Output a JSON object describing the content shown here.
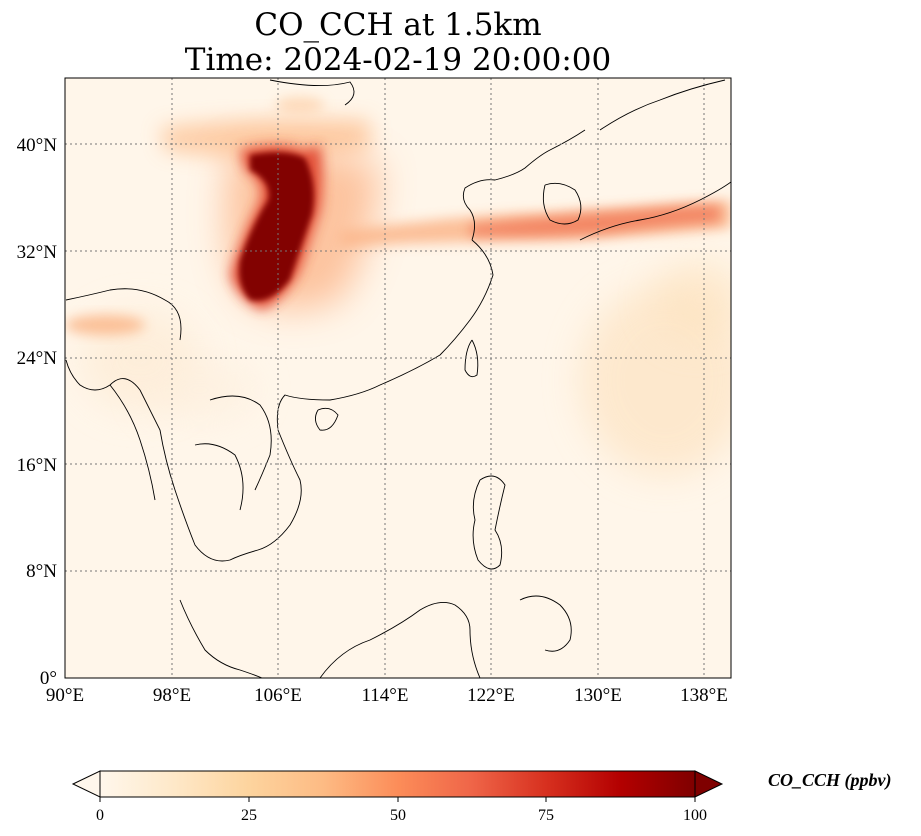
{
  "title_line1": "CO_CCH at 1.5km",
  "title_line2": "Time: 2024-02-19 20:00:00",
  "colorbar": {
    "label": "CO_CCH (ppbv)",
    "ticks": [
      "0",
      "25",
      "50",
      "75",
      "100"
    ],
    "colormap": "OrRd",
    "extend": "both",
    "colors": [
      "#fff7ec",
      "#fee8c8",
      "#fdd49e",
      "#fdbb84",
      "#fc8d59",
      "#ef6548",
      "#d7301f",
      "#b30000",
      "#7f0000"
    ]
  },
  "map": {
    "lon_ticks": [
      "90°E",
      "98°E",
      "106°E",
      "114°E",
      "122°E",
      "130°E",
      "138°E"
    ],
    "lat_ticks": [
      "0°",
      "8°N",
      "16°N",
      "24°N",
      "32°N",
      "40°N"
    ],
    "extent": {
      "lon_min": 90,
      "lon_max": 140,
      "lat_min": 0,
      "lat_max": 45
    },
    "gridlines": "dotted"
  },
  "chart_data": {
    "type": "heatmap",
    "title": "CO_CCH at 1.5km Time: 2024-02-19 20:00:00",
    "colorbar_label": "CO_CCH (ppbv)",
    "value_range": [
      0,
      100
    ],
    "x_range": [
      90,
      140
    ],
    "y_range": [
      0,
      45
    ],
    "plumes": [
      {
        "region": "central China (Sichuan–Shaanxi)",
        "lon": [
          102,
          110
        ],
        "lat": [
          29,
          40
        ],
        "peak_ppbv": 100
      },
      {
        "region": "Hetao / Inner Mongolia band",
        "lon": [
          98,
          112
        ],
        "lat": [
          38,
          42
        ],
        "peak_ppbv": 40
      },
      {
        "region": "Yellow Sea – Korea – Japan band",
        "lon": [
          114,
          140
        ],
        "lat": [
          32,
          35.5
        ],
        "peak_ppbv": 55
      },
      {
        "region": "NE India",
        "lon": [
          90,
          96
        ],
        "lat": [
          26,
          27
        ],
        "peak_ppbv": 25
      },
      {
        "region": "Western Pacific diffuse",
        "lon": [
          129,
          140
        ],
        "lat": [
          16,
          30
        ],
        "peak_ppbv": 15
      }
    ]
  }
}
